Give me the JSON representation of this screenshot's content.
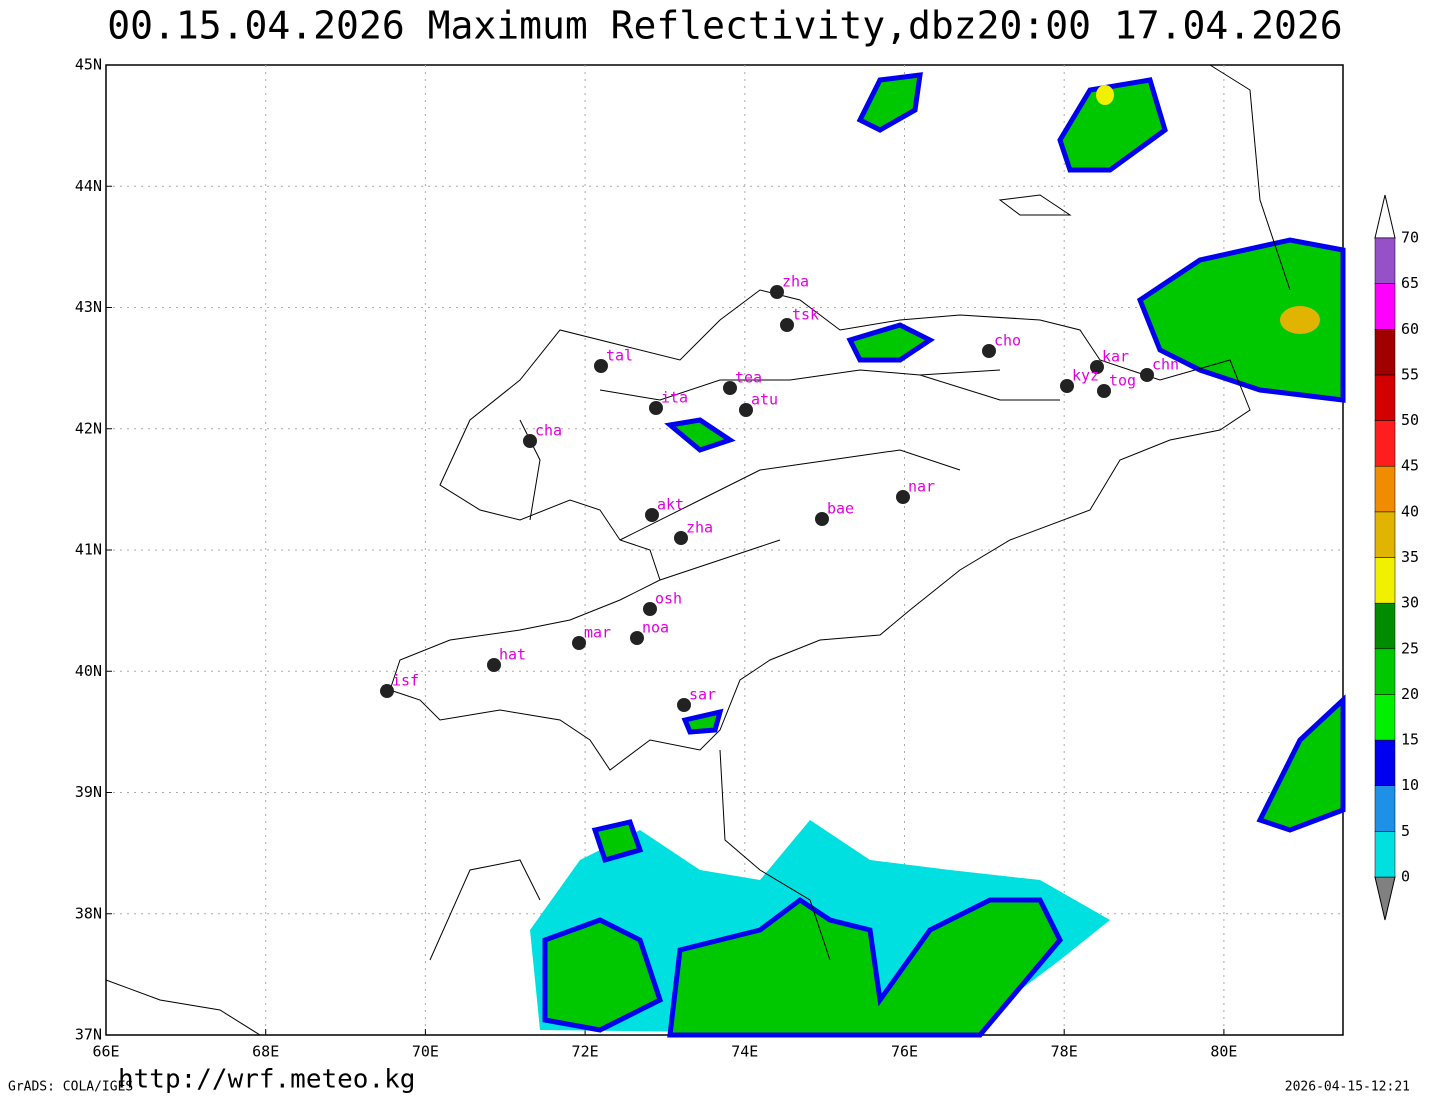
{
  "title": "00.15.04.2026  Maximum  Reflectivity,dbz20:00  17.04.2026",
  "lon_ticks": [
    "66E",
    "68E",
    "70E",
    "72E",
    "74E",
    "76E",
    "78E",
    "80E"
  ],
  "lat_ticks": [
    "37N",
    "38N",
    "39N",
    "40N",
    "41N",
    "42N",
    "43N",
    "44N",
    "45N"
  ],
  "stations": [
    "zha",
    "tsk",
    "tal",
    "tea",
    "atu",
    "ita",
    "cha",
    "cho",
    "kar",
    "kyz",
    "tog",
    "chn",
    "nar",
    "bae",
    "akt",
    "zha",
    "osh",
    "mar",
    "noa",
    "hat",
    "isf",
    "sar"
  ],
  "colorbar": {
    "levels": [
      0,
      5,
      10,
      15,
      20,
      25,
      30,
      35,
      40,
      45,
      50,
      55,
      60,
      65,
      70
    ],
    "colors": [
      "#00e0e0",
      "#1e90e6",
      "#0000f0",
      "#00f000",
      "#00c800",
      "#008c00",
      "#f0f000",
      "#e0b400",
      "#f08c00",
      "#ff1e1e",
      "#d20000",
      "#a00000",
      "#ff00ff",
      "#9650c8"
    ]
  },
  "footer": {
    "url": "http://wrf.meteo.kg",
    "software": "GrADS: COLA/IGES",
    "timestamp": "2026-04-15-12:21"
  }
}
